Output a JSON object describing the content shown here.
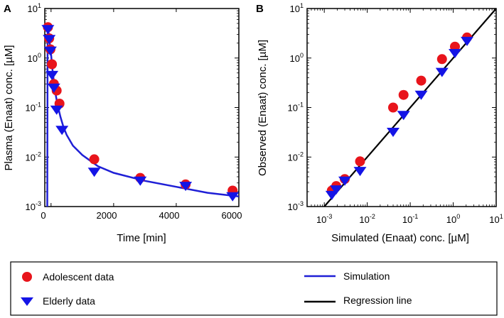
{
  "colors": {
    "adolescent": "#e8141b",
    "elderly": "#1414e6",
    "simulation": "#1f1fd6",
    "regression": "#000000",
    "axes": "#000000"
  },
  "legend": {
    "adolescent": "Adolescent data",
    "elderly": "Elderly data",
    "simulation": "Simulation",
    "regression": "Regression line"
  },
  "chart_data": [
    {
      "type": "scatter",
      "panel": "A",
      "xlabel": "Time [min]",
      "ylabel": "Plasma (Enaat) conc. [µM]",
      "xlim": [
        -200,
        6000
      ],
      "ylim_log10": [
        -3,
        1
      ],
      "yscale": "log",
      "x_ticks": [
        0,
        2000,
        4000,
        6000
      ],
      "x_tick_labels": [
        "0",
        "2000",
        "4000",
        "6000"
      ],
      "y_tick_exponents": [
        -3,
        -2,
        -1,
        0,
        1
      ],
      "series": [
        {
          "name": "Adolescent data",
          "marker": "circle",
          "x": [
            -100,
            -60,
            -20,
            30,
            90,
            180,
            270,
            1380,
            2850,
            4300,
            5800
          ],
          "y": [
            4.2,
            2.5,
            1.5,
            0.75,
            0.3,
            0.22,
            0.12,
            0.009,
            0.0038,
            0.0028,
            0.0021
          ]
        },
        {
          "name": "Elderly data",
          "marker": "triangle-down",
          "x": [
            -100,
            -60,
            -20,
            30,
            90,
            180,
            350,
            1380,
            2850,
            4300,
            5800
          ],
          "y": [
            3.8,
            2.4,
            1.4,
            0.45,
            0.25,
            0.09,
            0.035,
            0.005,
            0.0033,
            0.0026,
            0.0016
          ]
        },
        {
          "name": "Simulation",
          "line": true,
          "x": [
            -120,
            -110,
            -100,
            -50,
            0,
            50,
            100,
            150,
            200,
            300,
            400,
            500,
            700,
            1000,
            1500,
            2000,
            3000,
            4000,
            5000,
            6000
          ],
          "y": [
            0.001,
            5,
            4.5,
            2.2,
            1.2,
            0.55,
            0.3,
            0.18,
            0.12,
            0.065,
            0.04,
            0.028,
            0.017,
            0.011,
            0.0065,
            0.0048,
            0.0033,
            0.0025,
            0.0019,
            0.0016
          ]
        }
      ]
    },
    {
      "type": "scatter",
      "panel": "B",
      "xlabel": "Simulated (Enaat) conc. [µM]",
      "ylabel": "Observed (Enaat) conc. [µM]",
      "xscale": "log",
      "yscale": "log",
      "xlim_log10": [
        -3.4,
        1
      ],
      "ylim_log10": [
        -3,
        1
      ],
      "x_tick_exponents": [
        -3,
        -2,
        -1,
        0,
        1
      ],
      "y_tick_exponents": [
        -3,
        -2,
        -1,
        0,
        1
      ],
      "series": [
        {
          "name": "Adolescent data",
          "marker": "circle",
          "x": [
            0.0015,
            0.0019,
            0.003,
            0.0068,
            0.04,
            0.07,
            0.18,
            0.55,
            1.1,
            2.1
          ],
          "y": [
            0.0021,
            0.0026,
            0.0036,
            0.0082,
            0.1,
            0.18,
            0.35,
            0.95,
            1.7,
            2.6
          ]
        },
        {
          "name": "Elderly data",
          "marker": "triangle-down",
          "x": [
            0.0015,
            0.0019,
            0.003,
            0.0068,
            0.04,
            0.07,
            0.18,
            0.55,
            1.1,
            2.1
          ],
          "y": [
            0.0017,
            0.0022,
            0.0033,
            0.0052,
            0.032,
            0.07,
            0.18,
            0.52,
            1.25,
            2.2
          ]
        },
        {
          "name": "Regression line",
          "line": true,
          "x": [
            0.0004,
            10
          ],
          "y": [
            0.0004,
            10
          ]
        }
      ]
    }
  ],
  "panels": {
    "A": {
      "letter": "A",
      "x_tick_labels": [
        "0",
        "2000",
        "4000",
        "6000"
      ]
    },
    "B": {
      "letter": "B"
    }
  }
}
